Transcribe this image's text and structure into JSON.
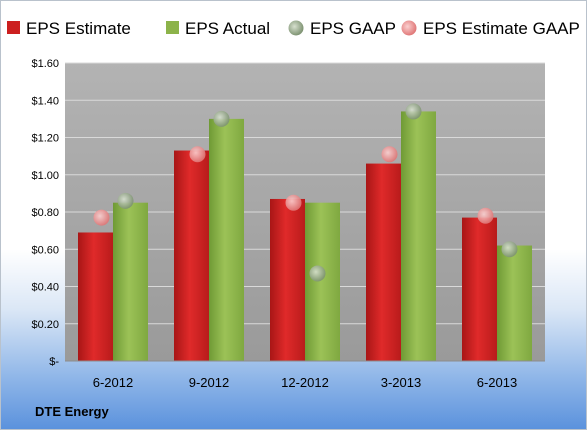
{
  "chart_data": {
    "type": "bar",
    "categories": [
      "6-2012",
      "9-2012",
      "12-2012",
      "3-2013",
      "6-2013"
    ],
    "series": [
      {
        "name": "EPS Estimate",
        "kind": "bar",
        "color": "#cc1f1f",
        "values": [
          0.69,
          1.13,
          0.87,
          1.06,
          0.77
        ]
      },
      {
        "name": "EPS Actual",
        "kind": "bar",
        "color": "#8cb34a",
        "values": [
          0.85,
          1.3,
          0.85,
          1.34,
          0.62
        ]
      },
      {
        "name": "EPS GAAP",
        "kind": "marker",
        "color": "#9aae8e",
        "values": [
          0.86,
          1.3,
          0.47,
          1.34,
          0.6
        ]
      },
      {
        "name": "EPS Estimate GAAP",
        "kind": "marker",
        "color": "#f0a0a0",
        "values": [
          0.77,
          1.11,
          0.85,
          1.11,
          0.78
        ]
      }
    ],
    "ylim": [
      0,
      1.6
    ],
    "yticks": [
      0,
      0.2,
      0.4,
      0.6,
      0.8,
      1.0,
      1.2,
      1.4,
      1.6
    ],
    "ytick_labels": [
      "$-",
      "$0.20",
      "$0.40",
      "$0.60",
      "$0.80",
      "$1.00",
      "$1.20",
      "$1.40",
      "$1.60"
    ],
    "grid": true,
    "legend_position": "top",
    "plot_background": "#a6a6a6"
  },
  "company": "DTE Energy"
}
